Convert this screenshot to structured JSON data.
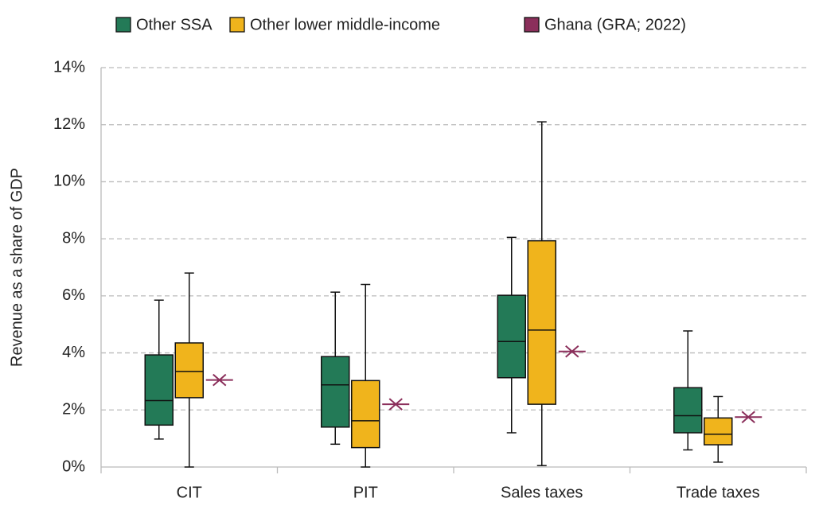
{
  "chart_data": {
    "type": "box",
    "y_label": "Revenue as a share of GDP",
    "categories": [
      "CIT",
      "PIT",
      "Sales taxes",
      "Trade taxes"
    ],
    "ylim": [
      0,
      14
    ],
    "yticks": [
      {
        "value": 0,
        "label": "0%"
      },
      {
        "value": 2,
        "label": "2%"
      },
      {
        "value": 4,
        "label": "4%"
      },
      {
        "value": 6,
        "label": "6%"
      },
      {
        "value": 8,
        "label": "8%"
      },
      {
        "value": 10,
        "label": "10%"
      },
      {
        "value": 12,
        "label": "12%"
      },
      {
        "value": 14,
        "label": "14%"
      }
    ],
    "grid": true,
    "series": [
      {
        "name": "Other SSA",
        "color": "#237a57",
        "min": [
          0.98,
          0.8,
          1.2,
          0.6
        ],
        "q1": [
          1.47,
          1.4,
          3.13,
          1.2
        ],
        "median": [
          2.33,
          2.88,
          4.4,
          1.8
        ],
        "q3": [
          3.93,
          3.87,
          6.02,
          2.78
        ],
        "max": [
          5.85,
          6.13,
          8.05,
          4.77
        ]
      },
      {
        "name": "Other lower middle-income",
        "color": "#f0b41c",
        "min": [
          0,
          0,
          0.05,
          0.17
        ],
        "q1": [
          2.43,
          0.68,
          2.2,
          0.78
        ],
        "median": [
          3.35,
          1.62,
          4.8,
          1.15
        ],
        "q3": [
          4.35,
          3.03,
          7.93,
          1.72
        ],
        "max": [
          6.8,
          6.4,
          12.1,
          2.47
        ]
      }
    ],
    "point_series": {
      "name": "Ghana (GRA; 2022)",
      "color": "#8b2f5b",
      "values": [
        3.05,
        2.2,
        4.05,
        1.75
      ]
    }
  }
}
